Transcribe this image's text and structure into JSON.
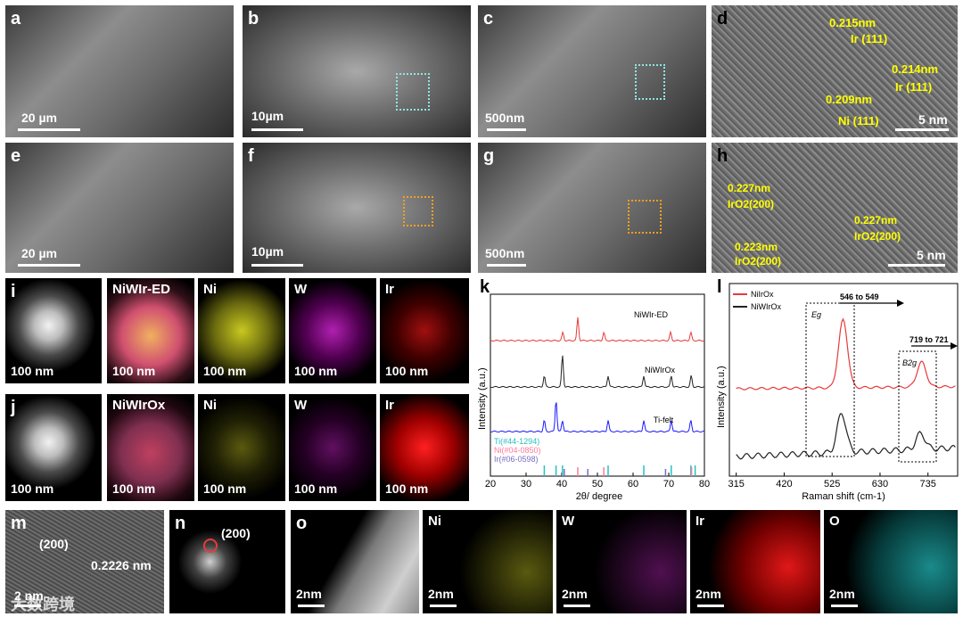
{
  "labels": {
    "a": "a",
    "b": "b",
    "c": "c",
    "d": "d",
    "e": "e",
    "f": "f",
    "g": "g",
    "h": "h",
    "i": "i",
    "j": "j",
    "k": "k",
    "l": "l",
    "m": "m",
    "n": "n",
    "o": "o"
  },
  "scales": {
    "a": "20 µm",
    "b": "10µm",
    "c": "500nm",
    "d": "5 nm",
    "e": "20 µm",
    "f": "10µm",
    "g": "500nm",
    "h": "5 nm",
    "map": "100 nm",
    "m": "2 nm",
    "o": "2nm"
  },
  "panel_d": {
    "ann1": "0.215nm",
    "ann1b": "Ir (111)",
    "ann2": "0.214nm",
    "ann2b": "Ir (111)",
    "ann3": "0.209nm",
    "ann3b": "Ni (111)"
  },
  "panel_h": {
    "ann1": "0.227nm",
    "ann1b": "IrO2(200)",
    "ann2": "0.227nm",
    "ann2b": "IrO2(200)",
    "ann3": "0.223nm",
    "ann3b": "IrO2(200)"
  },
  "row_i": [
    "NiWIr-ED",
    "Ni",
    "W",
    "Ir"
  ],
  "row_j": [
    "NiWIrOx",
    "Ni",
    "W",
    "Ir"
  ],
  "row_o": [
    "Ni",
    "W",
    "Ir",
    "O"
  ],
  "panel_m": {
    "plane": "(200)",
    "spacing": "0.2226 nm"
  },
  "panel_n": {
    "plane": "(200)"
  },
  "watermark": "大数跨境",
  "colors": {
    "red": "#e83a3a",
    "black": "#222222",
    "blue": "#1a1aff",
    "cyan": "#27c0c0",
    "pink": "#ff7a9a",
    "purple": "#7a6cc0",
    "yellow": "#ffff00",
    "teal": "#8ee6e0",
    "orange": "#f0a020"
  },
  "chart_data": [
    {
      "type": "line",
      "title": "",
      "xlabel": "2θ/ degree",
      "ylabel": "Intensity (a.u.)",
      "xlim": [
        20,
        80
      ],
      "xticks": [
        20,
        30,
        40,
        50,
        60,
        70,
        80
      ],
      "series": [
        {
          "name": "NiWIr-ED",
          "peaks_x": [
            40.3,
            44.5,
            51.8,
            70.5,
            76.2
          ]
        },
        {
          "name": "NiWIrOx",
          "peaks_x": [
            35.1,
            40.2,
            53.0,
            63.0,
            70.7,
            76.3
          ]
        },
        {
          "name": "Ti-felt",
          "peaks_x": [
            35.1,
            38.4,
            40.2,
            53.0,
            63.0,
            70.7,
            76.2
          ]
        }
      ],
      "references": [
        {
          "name": "Ti(#44-1294)",
          "lines_x": [
            35.1,
            38.4,
            40.2,
            53.0,
            63.0,
            70.7,
            76.2,
            77.4
          ]
        },
        {
          "name": "Ni(#04-0850)",
          "lines_x": [
            44.5,
            51.8,
            76.4
          ]
        },
        {
          "name": "Ir(#06-0598)",
          "lines_x": [
            40.7,
            47.3,
            69.1
          ]
        }
      ]
    },
    {
      "type": "line",
      "title": "",
      "xlabel": "Raman shift (cm-1)",
      "ylabel": "Intensity (a.u.)",
      "xticks": [
        315,
        420,
        525,
        630,
        735
      ],
      "series": [
        {
          "name": "NiIrOx",
          "peaks_x": [
            549,
            721
          ]
        },
        {
          "name": "NiWIrOx",
          "peaks_x": [
            546,
            719
          ]
        }
      ],
      "annotations": [
        "546 to 549",
        "719 to 721",
        "Eg",
        "B2g"
      ]
    }
  ]
}
